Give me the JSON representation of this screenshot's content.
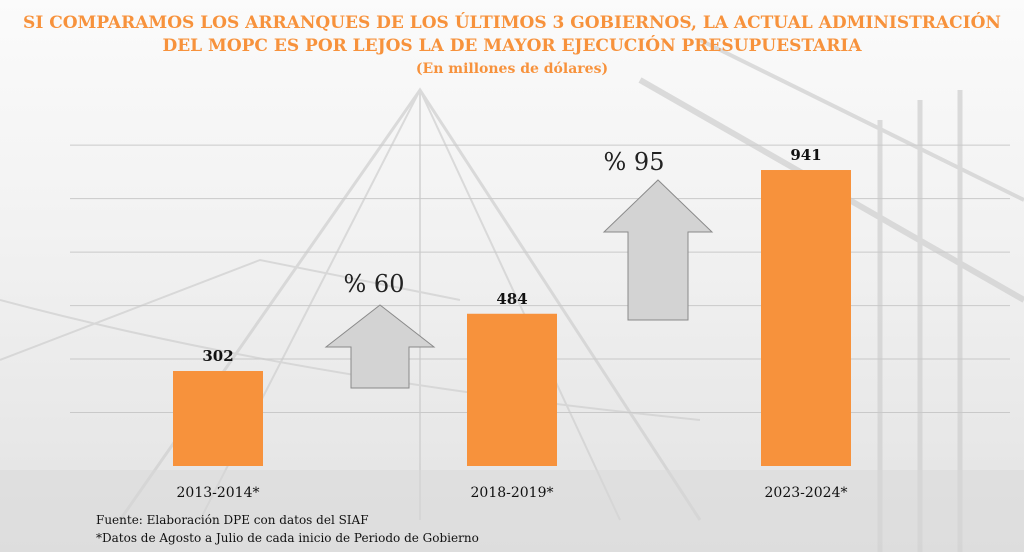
{
  "chart_data": {
    "type": "bar",
    "title_lines": [
      "SI COMPARAMOS LOS ARRANQUES DE LOS ÚLTIMOS 3 GOBIERNOS, LA ACTUAL ADMINISTRACIÓN",
      "DEL MOPC ES POR LEJOS LA DE MAYOR EJECUCIÓN PRESUPUESTARIA"
    ],
    "subtitle": "(En millones de dólares)",
    "categories": [
      "2013-2014*",
      "2018-2019*",
      "2023-2024*"
    ],
    "values": [
      302,
      484,
      941
    ],
    "ylim": [
      0,
      1100
    ],
    "grid": true,
    "bar_color": "#f7923c",
    "arrow_color": "#d3d3d3",
    "growth_annotations": [
      {
        "label": "% 60",
        "from": 0,
        "to": 1
      },
      {
        "label": "% 95",
        "from": 1,
        "to": 2
      }
    ],
    "footnotes": [
      "Fuente: Elaboración DPE con datos del SIAF",
      "*Datos de Agosto a Julio de cada inicio de Periodo de Gobierno"
    ]
  }
}
